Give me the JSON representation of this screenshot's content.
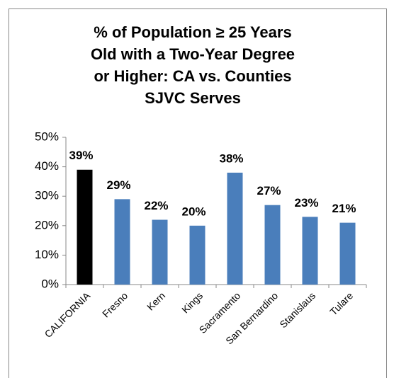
{
  "chart_data": {
    "type": "bar",
    "title": [
      "% of Population ≥ 25 Years",
      "Old with a Two-Year Degree",
      "or Higher: CA vs. Counties",
      "SJVC Serves"
    ],
    "categories": [
      "CALIFORNIA",
      "Fresno",
      "Kern",
      "Kings",
      "Sacramento",
      "San Bernardino",
      "Stanislaus",
      "Tulare"
    ],
    "values": [
      39,
      29,
      22,
      20,
      38,
      27,
      23,
      21
    ],
    "value_labels": [
      "39%",
      "29%",
      "22%",
      "20%",
      "38%",
      "27%",
      "23%",
      "21%"
    ],
    "colors": [
      "#000000",
      "#4a7ebb",
      "#4a7ebb",
      "#4a7ebb",
      "#4a7ebb",
      "#4a7ebb",
      "#4a7ebb",
      "#4a7ebb"
    ],
    "ylim": [
      0,
      50
    ],
    "yticks": [
      {
        "value": 0,
        "label": "0%"
      },
      {
        "value": 10,
        "label": "10%"
      },
      {
        "value": 20,
        "label": "20%"
      },
      {
        "value": 30,
        "label": "30%"
      },
      {
        "value": 40,
        "label": "40%"
      },
      {
        "value": 50,
        "label": "50%"
      }
    ],
    "grid": false
  }
}
